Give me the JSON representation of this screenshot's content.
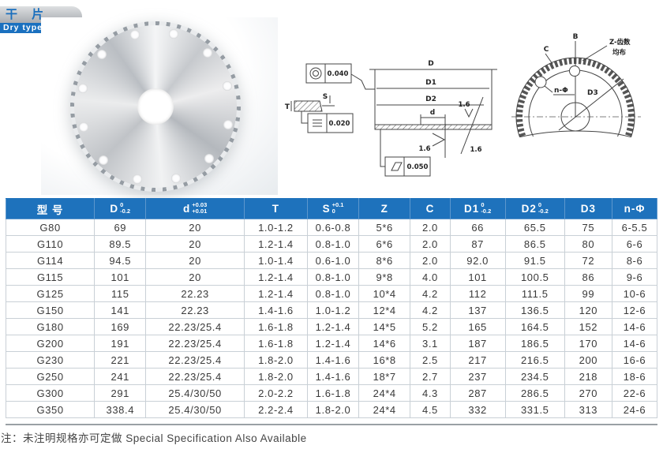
{
  "banner": {
    "title_cn": "干 片",
    "title_en": "Dry type"
  },
  "drawing_mid": {
    "labels": {
      "D": "D",
      "D1": "D1",
      "D2": "D2",
      "d": "d",
      "T": "T",
      "S": "S",
      "r1": "1.6",
      "r2": "1.6",
      "r3": "1.6",
      "concentricity": "0.040",
      "parallelism": "0.020",
      "flatness": "0.050"
    }
  },
  "drawing_front": {
    "labels": {
      "B": "B",
      "C": "C",
      "Z": "Z-齿数",
      "even": "均布",
      "n_phi": "n-Φ",
      "D3": "D3"
    }
  },
  "table": {
    "headers": [
      {
        "label": "型  号",
        "tol_top": "",
        "tol_bottom": ""
      },
      {
        "label": "D",
        "tol_top": "0",
        "tol_bottom": "-0.2"
      },
      {
        "label": "d",
        "tol_top": "+0.03",
        "tol_bottom": "+0.01"
      },
      {
        "label": "T",
        "tol_top": "",
        "tol_bottom": ""
      },
      {
        "label": "S",
        "tol_top": "+0.1",
        "tol_bottom": "0"
      },
      {
        "label": "Z",
        "tol_top": "",
        "tol_bottom": ""
      },
      {
        "label": "C",
        "tol_top": "",
        "tol_bottom": ""
      },
      {
        "label": "D1",
        "tol_top": "0",
        "tol_bottom": "-0.2"
      },
      {
        "label": "D2",
        "tol_top": "0",
        "tol_bottom": "-0.2"
      },
      {
        "label": "D3",
        "tol_top": "",
        "tol_bottom": ""
      },
      {
        "label": "n-Φ",
        "tol_top": "",
        "tol_bottom": ""
      }
    ],
    "rows": [
      [
        "G80",
        "69",
        "20",
        "1.0-1.2",
        "0.6-0.8",
        "5*6",
        "2.0",
        "66",
        "65.5",
        "75",
        "6-5.5"
      ],
      [
        "G110",
        "89.5",
        "20",
        "1.2-1.4",
        "0.8-1.0",
        "6*6",
        "2.0",
        "87",
        "86.5",
        "80",
        "6-6"
      ],
      [
        "G114",
        "94.5",
        "20",
        "1.0-1.4",
        "0.6-1.0",
        "8*6",
        "2.0",
        "92.0",
        "91.5",
        "72",
        "8-6"
      ],
      [
        "G115",
        "101",
        "20",
        "1.2-1.4",
        "0.8-1.0",
        "9*8",
        "4.0",
        "101",
        "100.5",
        "86",
        "9-6"
      ],
      [
        "G125",
        "115",
        "22.23",
        "1.2-1.4",
        "0.8-1.0",
        "10*4",
        "4.2",
        "112",
        "111.5",
        "99",
        "10-6"
      ],
      [
        "G150",
        "141",
        "22.23",
        "1.4-1.6",
        "1.0-1.2",
        "12*4",
        "4.2",
        "137",
        "136.5",
        "120",
        "12-6"
      ],
      [
        "G180",
        "169",
        "22.23/25.4",
        "1.6-1.8",
        "1.2-1.4",
        "14*5",
        "5.2",
        "165",
        "164.5",
        "152",
        "14-6"
      ],
      [
        "G200",
        "191",
        "22.23/25.4",
        "1.6-1.8",
        "1.2-1.4",
        "14*6",
        "3.1",
        "187",
        "186.5",
        "170",
        "14-6"
      ],
      [
        "G230",
        "221",
        "22.23/25.4",
        "1.8-2.0",
        "1.4-1.6",
        "16*8",
        "2.5",
        "217",
        "216.5",
        "200",
        "16-6"
      ],
      [
        "G250",
        "241",
        "22.23/25.4",
        "1.8-2.0",
        "1.4-1.6",
        "18*7",
        "2.7",
        "237",
        "234.5",
        "218",
        "18-6"
      ],
      [
        "G300",
        "291",
        "25.4/30/50",
        "2.0-2.2",
        "1.6-1.8",
        "24*4",
        "4.3",
        "287",
        "286.5",
        "270",
        "22-6"
      ],
      [
        "G350",
        "338.4",
        "25.4/30/50",
        "2.2-2.4",
        "1.8-2.0",
        "24*4",
        "4.5",
        "332",
        "331.5",
        "313",
        "24-6"
      ]
    ]
  },
  "footnote": {
    "text": "注：未注明规格亦可定做 Special Specification Also Available"
  }
}
